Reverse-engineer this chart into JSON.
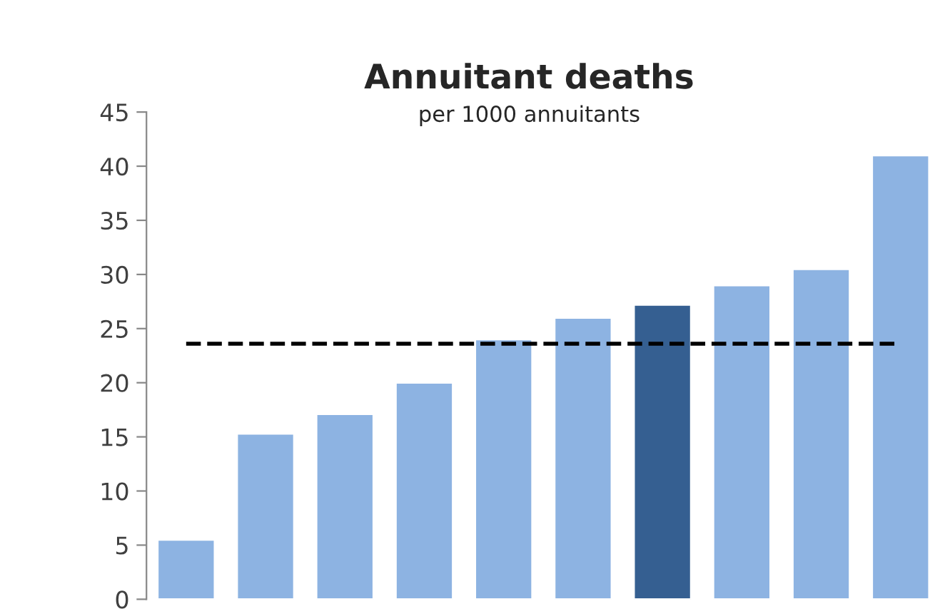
{
  "chart_data": {
    "type": "bar",
    "title": "Annuitant deaths",
    "subtitle": "per 1000 annuitants",
    "categories": [
      null,
      null,
      null,
      null,
      null,
      null,
      null,
      null,
      null,
      null
    ],
    "values": [
      5.5,
      15.3,
      17.1,
      20,
      24,
      26,
      27.2,
      29,
      30.5,
      41
    ],
    "colors": [
      "#8db3e2",
      "#8db3e2",
      "#8db3e2",
      "#8db3e2",
      "#8db3e2",
      "#8db3e2",
      "#355f91",
      "#8db3e2",
      "#8db3e2",
      "#8db3e2"
    ],
    "ylim": [
      0,
      45
    ],
    "yticks": [
      0,
      5,
      10,
      15,
      20,
      25,
      30,
      35,
      40,
      45
    ],
    "ref_lines": [
      {
        "axis": "y",
        "value": 23.6,
        "color": "#000000",
        "line_style": "dashed"
      }
    ],
    "grid": false,
    "legend": false
  }
}
